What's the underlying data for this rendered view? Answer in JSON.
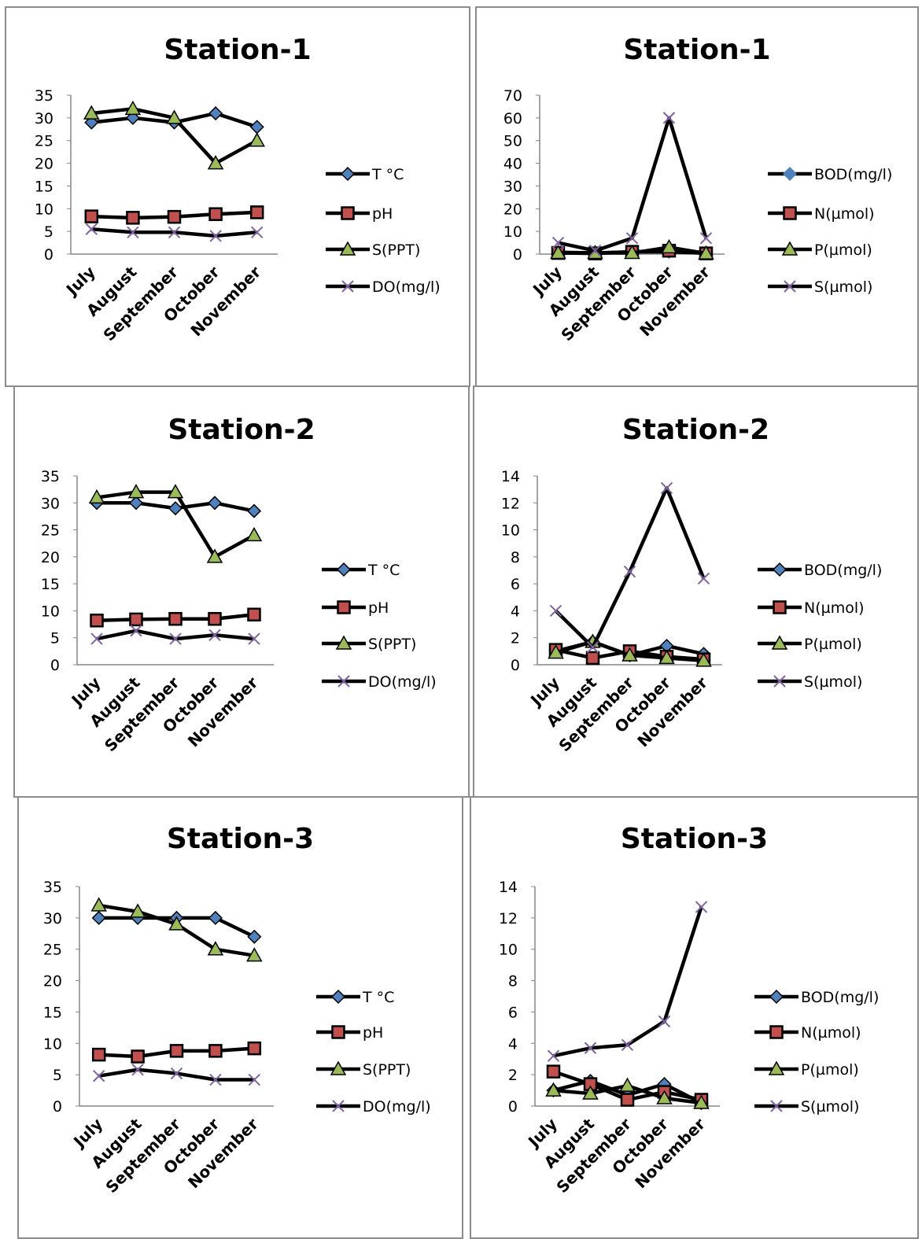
{
  "chart_data": [
    {
      "type": "line",
      "title": "Station-1",
      "categories": [
        "July",
        "August",
        "September",
        "October",
        "November"
      ],
      "ylim": [
        0,
        35
      ],
      "yticks": [
        0,
        5,
        10,
        15,
        20,
        25,
        30,
        35
      ],
      "grid": false,
      "legend_position": "right",
      "series": [
        {
          "name": "T °C",
          "values": [
            29,
            30,
            29,
            31,
            28
          ],
          "marker": "diamond",
          "marker_fill": "#4f81bd",
          "marker_stroke": "#000000"
        },
        {
          "name": "pH",
          "values": [
            8.3,
            8,
            8.2,
            8.8,
            9.2
          ],
          "marker": "square",
          "marker_fill": "#c0504d",
          "marker_stroke": "#000000"
        },
        {
          "name": "S(PPT)",
          "values": [
            31,
            32,
            30,
            20,
            25
          ],
          "marker": "triangle",
          "marker_fill": "#9bbb59",
          "marker_stroke": "#000000"
        },
        {
          "name": "DO(mg/l)",
          "values": [
            5.5,
            4.8,
            4.8,
            4,
            4.8
          ],
          "marker": "x",
          "marker_fill": "none",
          "marker_stroke": "#8064a2"
        }
      ]
    },
    {
      "type": "line",
      "title": "Station-1",
      "categories": [
        "July",
        "August",
        "September",
        "October",
        "November"
      ],
      "ylim": [
        0,
        70
      ],
      "yticks": [
        0,
        10,
        20,
        30,
        40,
        50,
        60,
        70
      ],
      "grid": false,
      "legend_position": "right",
      "series": [
        {
          "name": "BOD(mg/l)",
          "values": [
            0.8,
            0.5,
            1,
            1,
            0.5
          ],
          "marker": "diamond",
          "marker_fill": "#4f81bd",
          "marker_stroke": "#4f81bd"
        },
        {
          "name": "N(µmol)",
          "values": [
            0.5,
            0.3,
            1,
            1.5,
            0.3
          ],
          "marker": "square",
          "marker_fill": "#c0504d",
          "marker_stroke": "#000000"
        },
        {
          "name": "P(µmol)",
          "values": [
            0.5,
            0.5,
            0.5,
            3,
            0.3
          ],
          "marker": "triangle",
          "marker_fill": "#9bbb59",
          "marker_stroke": "#000000"
        },
        {
          "name": "S(µmol)",
          "values": [
            5,
            1.5,
            7,
            60,
            7
          ],
          "marker": "x",
          "marker_fill": "none",
          "marker_stroke": "#8064a2"
        }
      ]
    },
    {
      "type": "line",
      "title": "Station-2",
      "categories": [
        "July",
        "August",
        "September",
        "October",
        "November"
      ],
      "ylim": [
        0,
        35
      ],
      "yticks": [
        0,
        5,
        10,
        15,
        20,
        25,
        30,
        35
      ],
      "grid": false,
      "legend_position": "right",
      "series": [
        {
          "name": "T °C",
          "values": [
            30,
            30,
            29,
            30,
            28.5
          ],
          "marker": "diamond",
          "marker_fill": "#4f81bd",
          "marker_stroke": "#000000"
        },
        {
          "name": "pH",
          "values": [
            8.2,
            8.4,
            8.5,
            8.5,
            9.3
          ],
          "marker": "square",
          "marker_fill": "#c0504d",
          "marker_stroke": "#000000"
        },
        {
          "name": "S(PPT)",
          "values": [
            31,
            32,
            32,
            20,
            24
          ],
          "marker": "triangle",
          "marker_fill": "#9bbb59",
          "marker_stroke": "#000000"
        },
        {
          "name": "DO(mg/l)",
          "values": [
            4.8,
            6.3,
            4.8,
            5.5,
            4.8
          ],
          "marker": "x",
          "marker_fill": "none",
          "marker_stroke": "#8064a2"
        }
      ]
    },
    {
      "type": "line",
      "title": "Station-2",
      "categories": [
        "July",
        "August",
        "September",
        "October",
        "November"
      ],
      "ylim": [
        0,
        14
      ],
      "yticks": [
        0,
        2,
        4,
        6,
        8,
        10,
        12,
        14
      ],
      "grid": false,
      "legend_position": "right",
      "series": [
        {
          "name": "BOD(mg/l)",
          "values": [
            1,
            1.7,
            0.7,
            1.4,
            0.8
          ],
          "marker": "diamond",
          "marker_fill": "#4f81bd",
          "marker_stroke": "#000000"
        },
        {
          "name": "N(µmol)",
          "values": [
            1.1,
            0.5,
            1,
            0.6,
            0.4
          ],
          "marker": "square",
          "marker_fill": "#c0504d",
          "marker_stroke": "#000000"
        },
        {
          "name": "P(µmol)",
          "values": [
            0.9,
            1.7,
            0.7,
            0.5,
            0.3
          ],
          "marker": "triangle",
          "marker_fill": "#9bbb59",
          "marker_stroke": "#000000"
        },
        {
          "name": "S(µmol)",
          "values": [
            4,
            1.3,
            6.9,
            13.1,
            6.4
          ],
          "marker": "x",
          "marker_fill": "none",
          "marker_stroke": "#8064a2"
        }
      ]
    },
    {
      "type": "line",
      "title": "Station-3",
      "categories": [
        "July",
        "August",
        "September",
        "October",
        "November"
      ],
      "ylim": [
        0,
        35
      ],
      "yticks": [
        0,
        5,
        10,
        15,
        20,
        25,
        30,
        35
      ],
      "grid": false,
      "legend_position": "right",
      "series": [
        {
          "name": "T °C",
          "values": [
            30,
            30,
            30,
            30,
            27
          ],
          "marker": "diamond",
          "marker_fill": "#4f81bd",
          "marker_stroke": "#000000"
        },
        {
          "name": "pH",
          "values": [
            8.2,
            7.9,
            8.8,
            8.8,
            9.2
          ],
          "marker": "square",
          "marker_fill": "#c0504d",
          "marker_stroke": "#000000"
        },
        {
          "name": "S(PPT)",
          "values": [
            32,
            31,
            29,
            25,
            24
          ],
          "marker": "triangle",
          "marker_fill": "#9bbb59",
          "marker_stroke": "#000000"
        },
        {
          "name": "DO(mg/l)",
          "values": [
            4.8,
            5.8,
            5.2,
            4.2,
            4.2
          ],
          "marker": "x",
          "marker_fill": "none",
          "marker_stroke": "#8064a2"
        }
      ]
    },
    {
      "type": "line",
      "title": "Station-3",
      "categories": [
        "July",
        "August",
        "September",
        "October",
        "November"
      ],
      "ylim": [
        0,
        14
      ],
      "yticks": [
        0,
        2,
        4,
        6,
        8,
        10,
        12,
        14
      ],
      "grid": false,
      "legend_position": "right",
      "series": [
        {
          "name": "BOD(mg/l)",
          "values": [
            1,
            1.6,
            0.7,
            1.4,
            0.2
          ],
          "marker": "diamond",
          "marker_fill": "#4f81bd",
          "marker_stroke": "#000000"
        },
        {
          "name": "N(µmol)",
          "values": [
            2.2,
            1.4,
            0.4,
            0.9,
            0.4
          ],
          "marker": "square",
          "marker_fill": "#c0504d",
          "marker_stroke": "#000000"
        },
        {
          "name": "P(µmol)",
          "values": [
            1,
            0.8,
            1.3,
            0.5,
            0.2
          ],
          "marker": "triangle",
          "marker_fill": "#9bbb59",
          "marker_stroke": "#000000"
        },
        {
          "name": "S(µmol)",
          "values": [
            3.2,
            3.7,
            3.9,
            5.4,
            12.7
          ],
          "marker": "x",
          "marker_fill": "none",
          "marker_stroke": "#8064a2"
        }
      ]
    }
  ]
}
